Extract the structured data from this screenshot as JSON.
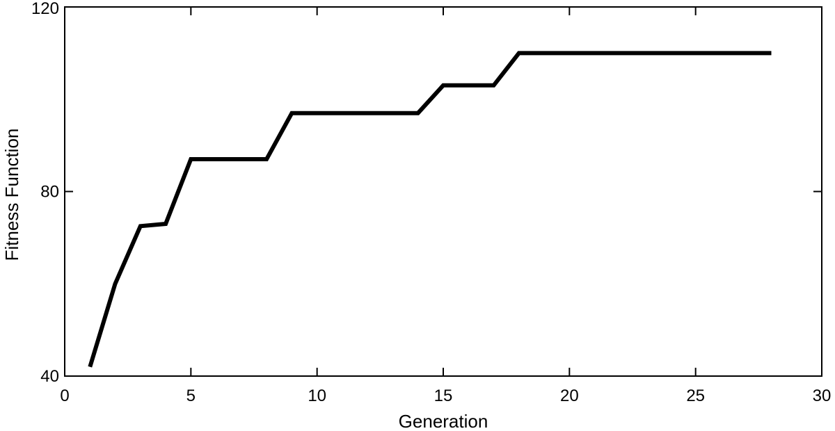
{
  "chart_data": {
    "type": "line",
    "title": "",
    "xlabel": "Generation",
    "ylabel": "Fitness Function",
    "xlim": [
      0,
      30
    ],
    "ylim": [
      40,
      120
    ],
    "xticks": [
      0,
      5,
      10,
      15,
      20,
      25,
      30
    ],
    "yticks": [
      40,
      80,
      120
    ],
    "xtick_labels": [
      "0",
      "5",
      "10",
      "15",
      "20",
      "25",
      "30"
    ],
    "ytick_labels": [
      "40",
      "80",
      "120"
    ],
    "grid": false,
    "legend": "none",
    "line_color": "#000000",
    "series": [
      {
        "x": [
          1,
          2,
          3,
          4,
          5,
          6,
          7,
          8,
          9,
          10,
          11,
          12,
          13,
          14,
          15,
          16,
          17,
          18,
          19,
          20,
          21,
          22,
          23,
          24,
          25,
          26,
          27,
          28
        ],
        "values": [
          42,
          60,
          72.5,
          73,
          87,
          87,
          87,
          87,
          97,
          97,
          97,
          97,
          97,
          97,
          103,
          103,
          103,
          110,
          110,
          110,
          110,
          110,
          110,
          110,
          110,
          110,
          110,
          110
        ]
      }
    ]
  }
}
